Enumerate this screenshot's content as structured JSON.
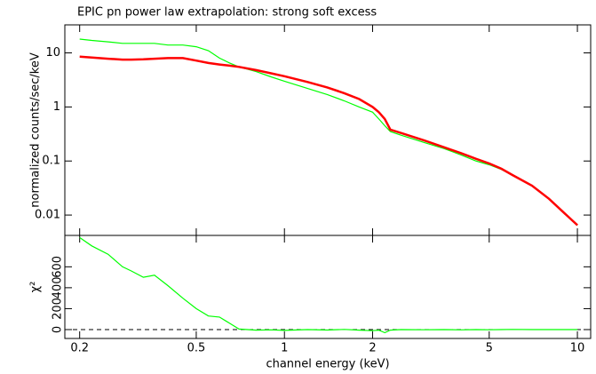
{
  "chart_data": [
    {
      "type": "line",
      "title": "EPIC pn power law extrapolation:   strong soft excess",
      "y_label": "normalized counts/sec/keV",
      "x_log": true,
      "y_log": true,
      "xlim": [
        0.178,
        11.1
      ],
      "ylim": [
        0.0042,
        33
      ],
      "xticks": [
        0.2,
        0.5,
        1,
        2,
        5,
        10
      ],
      "yticks": [
        0.01,
        0.1,
        1,
        10
      ],
      "x": [
        0.2,
        0.22,
        0.25,
        0.28,
        0.3,
        0.33,
        0.36,
        0.4,
        0.45,
        0.5,
        0.55,
        0.6,
        0.65,
        0.7,
        0.8,
        0.9,
        1,
        1.2,
        1.4,
        1.6,
        1.8,
        2,
        2.1,
        2.2,
        2.3,
        2.5,
        3,
        3.5,
        4,
        4.5,
        5,
        5.5,
        6,
        7,
        8,
        9,
        10
      ],
      "series": [
        {
          "color": "#00ff00",
          "width": 1.2,
          "values": [
            18,
            17,
            16,
            15,
            15,
            15,
            15,
            14,
            14,
            13,
            11,
            8,
            6.5,
            5.5,
            4.5,
            3.6,
            3.0,
            2.2,
            1.7,
            1.3,
            1.0,
            0.8,
            0.6,
            0.45,
            0.35,
            0.3,
            0.22,
            0.17,
            0.13,
            0.1,
            0.085,
            0.07,
            0.055,
            0.035,
            0.02,
            0.011,
            0.0065
          ]
        },
        {
          "color": "#ff0000",
          "width": 2.5,
          "values": [
            8.5,
            8.2,
            7.8,
            7.5,
            7.5,
            7.6,
            7.8,
            8.0,
            8.0,
            7.2,
            6.5,
            6.1,
            5.8,
            5.5,
            4.8,
            4.2,
            3.7,
            2.9,
            2.3,
            1.8,
            1.4,
            1.0,
            0.8,
            0.6,
            0.38,
            0.33,
            0.24,
            0.18,
            0.14,
            0.11,
            0.09,
            0.072,
            0.055,
            0.035,
            0.02,
            0.011,
            0.0065
          ]
        }
      ]
    },
    {
      "type": "line",
      "y_label": "χ²",
      "x_label": "channel energy (keV)",
      "x_log": true,
      "y_log": false,
      "xlim": [
        0.178,
        11.1
      ],
      "ylim": [
        -85,
        900
      ],
      "xticks": [
        0.2,
        0.5,
        1,
        2,
        5,
        10
      ],
      "yticks": [
        0,
        200,
        400,
        600
      ],
      "hline": 0,
      "x": [
        0.2,
        0.22,
        0.25,
        0.28,
        0.3,
        0.33,
        0.36,
        0.4,
        0.45,
        0.5,
        0.55,
        0.6,
        0.65,
        0.7,
        0.8,
        0.9,
        1,
        1.2,
        1.4,
        1.6,
        1.8,
        2,
        2.1,
        2.2,
        2.3,
        2.5,
        3,
        3.5,
        4,
        4.5,
        5,
        5.5,
        6,
        7,
        8,
        9,
        10
      ],
      "series": [
        {
          "color": "#00ff00",
          "width": 1.2,
          "values": [
            880,
            800,
            720,
            600,
            560,
            500,
            520,
            420,
            300,
            200,
            130,
            120,
            60,
            5,
            -5,
            -3,
            -8,
            0,
            -4,
            2,
            -5,
            -10,
            -5,
            -30,
            -5,
            0,
            -2,
            0,
            -3,
            0,
            -2,
            0,
            2,
            0,
            0,
            0,
            0
          ]
        }
      ]
    }
  ]
}
